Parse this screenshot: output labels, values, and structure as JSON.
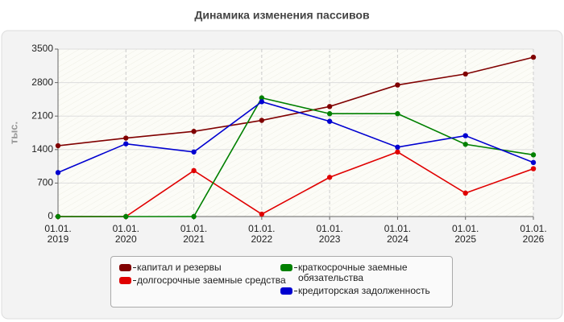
{
  "chart_data": {
    "type": "line",
    "title": "Динамика изменения пассивов",
    "y_label": "тыс.",
    "categories": [
      "01.01.\n2019",
      "01.01.\n2020",
      "01.01.\n2021",
      "01.01.\n2022",
      "01.01.\n2023",
      "01.01.\n2024",
      "01.01.\n2025",
      "01.01.\n2026"
    ],
    "series": [
      {
        "name": "капитал и резервы",
        "color": "#800000",
        "values": [
          1480,
          1640,
          1780,
          2010,
          2300,
          2750,
          2980,
          3330
        ]
      },
      {
        "name": "долгосрочные заемные средства",
        "color": "#e00000",
        "values": [
          0,
          0,
          960,
          50,
          820,
          1350,
          490,
          1000
        ]
      },
      {
        "name": "краткосрочные заемные обязательства",
        "color": "#008000",
        "values": [
          0,
          0,
          0,
          2480,
          2150,
          2150,
          1510,
          1290
        ]
      },
      {
        "name": "кредиторская задолженность",
        "color": "#0000d0",
        "values": [
          920,
          1520,
          1350,
          2400,
          1990,
          1450,
          1690,
          1130
        ]
      }
    ],
    "ylim": [
      0,
      3500
    ],
    "yticks": [
      0,
      700,
      1400,
      2100,
      2800,
      3500
    ],
    "grid": true,
    "legend": "bottom"
  }
}
